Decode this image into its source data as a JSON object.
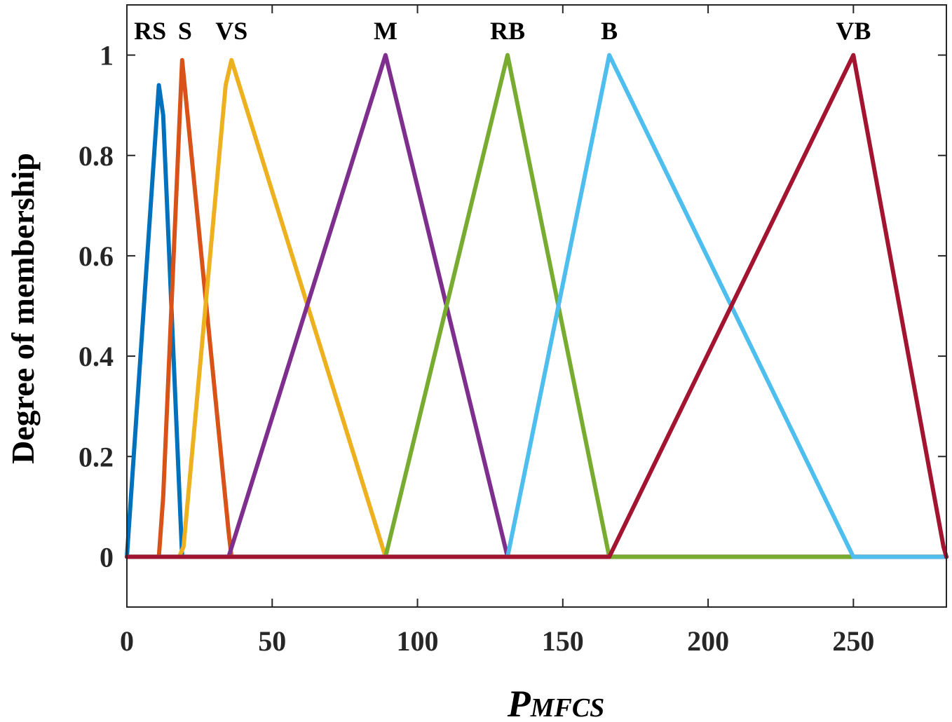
{
  "chart_data": {
    "type": "line",
    "title": "",
    "xlabel": {
      "main": "P",
      "subscript": "MFCS"
    },
    "ylabel": "Degree of membership",
    "xlim": [
      0,
      282
    ],
    "ylim": [
      -0.1,
      1.1
    ],
    "xticks": [
      0,
      50,
      100,
      150,
      200,
      250
    ],
    "xtick_labels": [
      "0",
      "50",
      "100",
      "150",
      "200",
      "250"
    ],
    "yticks": [
      0,
      0.2,
      0.4,
      0.6,
      0.8,
      1
    ],
    "ytick_labels": [
      "0",
      "0.2",
      "0.4",
      "0.6",
      "0.8",
      "1"
    ],
    "grid": false,
    "series": [
      {
        "name": "RS",
        "color": "#0072BD",
        "label_x": 8,
        "points": [
          [
            0,
            0
          ],
          [
            11,
            0.94
          ],
          [
            12.5,
            0.88
          ],
          [
            19,
            0
          ],
          [
            282,
            0
          ]
        ]
      },
      {
        "name": "S",
        "color": "#D95319",
        "label_x": 20,
        "points": [
          [
            0,
            0
          ],
          [
            11,
            0
          ],
          [
            12.5,
            0.12
          ],
          [
            19,
            0.99
          ],
          [
            35,
            0.05
          ],
          [
            36,
            0
          ],
          [
            282,
            0
          ]
        ]
      },
      {
        "name": "VS",
        "color": "#EDB120",
        "label_x": 36,
        "points": [
          [
            0,
            0
          ],
          [
            18,
            0
          ],
          [
            19.5,
            0.02
          ],
          [
            34,
            0.94
          ],
          [
            36,
            0.99
          ],
          [
            89,
            0
          ],
          [
            282,
            0
          ]
        ]
      },
      {
        "name": "M",
        "color": "#7E2F8E",
        "label_x": 89,
        "points": [
          [
            0,
            0
          ],
          [
            35,
            0
          ],
          [
            89,
            1
          ],
          [
            131,
            0
          ],
          [
            282,
            0
          ]
        ]
      },
      {
        "name": "RB",
        "color": "#77AC30",
        "label_x": 131,
        "points": [
          [
            0,
            0
          ],
          [
            89,
            0
          ],
          [
            131,
            1
          ],
          [
            166,
            0
          ],
          [
            250,
            0
          ]
        ]
      },
      {
        "name": "B",
        "color": "#4DBEEE",
        "label_x": 166,
        "points": [
          [
            0,
            0
          ],
          [
            131,
            0
          ],
          [
            166,
            1
          ],
          [
            250,
            0
          ],
          [
            282,
            0
          ]
        ]
      },
      {
        "name": "VB",
        "color": "#A2142F",
        "label_x": 250,
        "points": [
          [
            0,
            0
          ],
          [
            166,
            0
          ],
          [
            250,
            1
          ],
          [
            281,
            0.02
          ],
          [
            282,
            0
          ]
        ]
      }
    ]
  }
}
